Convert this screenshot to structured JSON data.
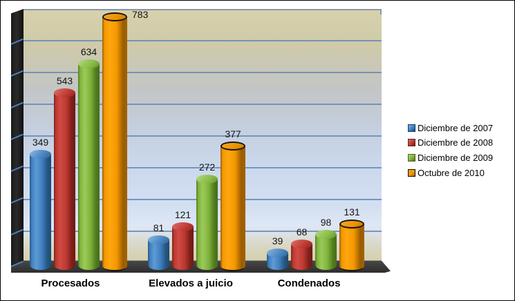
{
  "chart_data": {
    "type": "bar",
    "subtype": "3d-cylinder",
    "title": "",
    "xlabel": "",
    "ylabel": "",
    "categories": [
      "Procesados",
      "Elevados a juicio",
      "Condenados"
    ],
    "series": [
      {
        "name": "Diciembre de 2007",
        "values": [
          349,
          81,
          39
        ],
        "colors": {
          "dark": "#24557f",
          "light": "#5e9bd3",
          "main": "#3f7fc1",
          "edge": "#1f4a74",
          "top_light": "#7fb2e0",
          "top_main": "#4a85c0",
          "top_dark": "#2d5f93",
          "outline": "",
          "swatch_border": "#17375e"
        }
      },
      {
        "name": "Diciembre de 2008",
        "values": [
          543,
          121,
          68
        ],
        "colors": {
          "dark": "#7c1e19",
          "light": "#d14b44",
          "main": "#bb3931",
          "edge": "#721a16",
          "top_light": "#d96a63",
          "top_main": "#c03a33",
          "top_dark": "#8e241f",
          "outline": "",
          "swatch_border": "#632523"
        }
      },
      {
        "name": "Diciembre  de 2009",
        "values": [
          634,
          272,
          98
        ],
        "colors": {
          "dark": "#4f7a1d",
          "light": "#9cca5b",
          "main": "#7fb23a",
          "edge": "#486f1a",
          "top_light": "#b0d478",
          "top_main": "#89bc49",
          "top_dark": "#639028",
          "outline": "",
          "swatch_border": "#4f6228"
        }
      },
      {
        "name": "Octubre de 2010",
        "values": [
          783,
          377,
          131
        ],
        "colors": {
          "dark": "#9a5d00",
          "light": "#ffa60e",
          "main": "#f39800",
          "edge": "#a36200",
          "top_light": "#f5a224",
          "top_main": "#ed9300",
          "top_dark": "#c97c00",
          "outline": "#151515",
          "swatch_border": "#111111"
        }
      }
    ],
    "ylim": [
      0,
      800
    ],
    "gridline_step": 100,
    "grid": true,
    "y_axis_tick_labels_shown": false,
    "value_labels_shown": true,
    "legend_position": "right",
    "style": {
      "gridline_color": "#6688b8",
      "plot_top_border_color": "#8496b0",
      "wall_color": "#1a1a1a",
      "floor_color": "#3b3b3b",
      "axis_tick_color": "#4f81bd",
      "frame_border_color": "#000000",
      "background_color": "#ffffff"
    }
  }
}
